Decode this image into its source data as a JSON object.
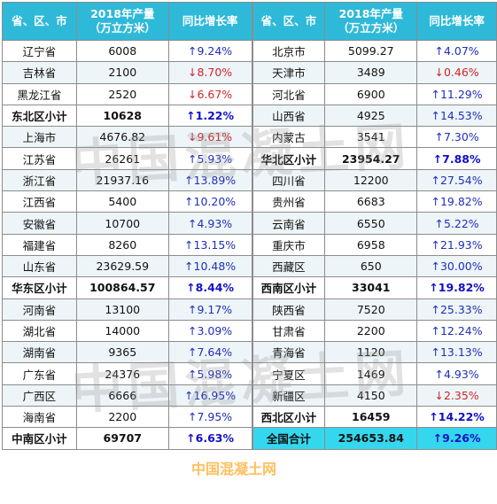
{
  "headers": {
    "region": "省、区、市",
    "production_line1": "2018年产量",
    "production_line2": "（万立方米）",
    "growth": "同比增长率"
  },
  "left_rows": [
    {
      "name": "辽宁省",
      "value": "6008",
      "growth": "↑9.24%",
      "dir": "up",
      "type": "odd"
    },
    {
      "name": "吉林省",
      "value": "2100",
      "growth": "↓8.70%",
      "dir": "down",
      "type": "even"
    },
    {
      "name": "黑龙江省",
      "value": "2520",
      "growth": "↓6.67%",
      "dir": "down",
      "type": "odd"
    },
    {
      "name": "东北区小计",
      "value": "10628",
      "growth": "↑1.22%",
      "dir": "up",
      "type": "sub"
    },
    {
      "name": "上海市",
      "value": "4676.82",
      "growth": "↓9.61%",
      "dir": "down",
      "type": "even"
    },
    {
      "name": "江苏省",
      "value": "26261",
      "growth": "↑5.93%",
      "dir": "up",
      "type": "odd"
    },
    {
      "name": "浙江省",
      "value": "21937.16",
      "growth": "↑13.89%",
      "dir": "up",
      "type": "even"
    },
    {
      "name": "江西省",
      "value": "5400",
      "growth": "↑10.20%",
      "dir": "up",
      "type": "odd"
    },
    {
      "name": "安徽省",
      "value": "10700",
      "growth": "↑4.93%",
      "dir": "up",
      "type": "even"
    },
    {
      "name": "福建省",
      "value": "8260",
      "growth": "↑13.15%",
      "dir": "up",
      "type": "odd"
    },
    {
      "name": "山东省",
      "value": "23629.59",
      "growth": "↑10.48%",
      "dir": "up",
      "type": "even"
    },
    {
      "name": "华东区小计",
      "value": "100864.57",
      "growth": "↑8.44%",
      "dir": "up",
      "type": "sub"
    },
    {
      "name": "河南省",
      "value": "13100",
      "growth": "↑9.17%",
      "dir": "up",
      "type": "even"
    },
    {
      "name": "湖北省",
      "value": "14000",
      "growth": "↑3.09%",
      "dir": "up",
      "type": "odd"
    },
    {
      "name": "湖南省",
      "value": "9365",
      "growth": "↑7.64%",
      "dir": "up",
      "type": "even"
    },
    {
      "name": "广东省",
      "value": "24376",
      "growth": "↑5.98%",
      "dir": "up",
      "type": "odd"
    },
    {
      "name": "广西区",
      "value": "6666",
      "growth": "↑16.95%",
      "dir": "up",
      "type": "even"
    },
    {
      "name": "海南省",
      "value": "2200",
      "growth": "↑7.95%",
      "dir": "up",
      "type": "odd"
    },
    {
      "name": "中南区小计",
      "value": "69707",
      "growth": "↑6.63%",
      "dir": "up",
      "type": "sub"
    }
  ],
  "right_rows": [
    {
      "name": "北京市",
      "value": "5099.27",
      "growth": "↑4.07%",
      "dir": "up",
      "type": "odd"
    },
    {
      "name": "天津市",
      "value": "3489",
      "growth": "↓0.46%",
      "dir": "down",
      "type": "even"
    },
    {
      "name": "河北省",
      "value": "6900",
      "growth": "↑11.29%",
      "dir": "up",
      "type": "odd"
    },
    {
      "name": "山西省",
      "value": "4925",
      "growth": "↑14.53%",
      "dir": "up",
      "type": "even"
    },
    {
      "name": "内蒙古",
      "value": "3541",
      "growth": "↑7.30%",
      "dir": "up",
      "type": "odd"
    },
    {
      "name": "华北区小计",
      "value": "23954.27",
      "growth": "↑7.88%",
      "dir": "up",
      "type": "sub"
    },
    {
      "name": "四川省",
      "value": "12200",
      "growth": "↑27.54%",
      "dir": "up",
      "type": "even"
    },
    {
      "name": "贵州省",
      "value": "6683",
      "growth": "↑19.82%",
      "dir": "up",
      "type": "odd"
    },
    {
      "name": "云南省",
      "value": "6550",
      "growth": "↑5.22%",
      "dir": "up",
      "type": "even"
    },
    {
      "name": "重庆市",
      "value": "6958",
      "growth": "↑21.93%",
      "dir": "up",
      "type": "odd"
    },
    {
      "name": "西藏区",
      "value": "650",
      "growth": "↑30.00%",
      "dir": "up",
      "type": "even"
    },
    {
      "name": "西南区小计",
      "value": "33041",
      "growth": "↑19.82%",
      "dir": "up",
      "type": "sub"
    },
    {
      "name": "陕西省",
      "value": "7520",
      "growth": "↑25.33%",
      "dir": "up",
      "type": "even"
    },
    {
      "name": "甘肃省",
      "value": "2200",
      "growth": "↑12.24%",
      "dir": "up",
      "type": "odd"
    },
    {
      "name": "青海省",
      "value": "1120",
      "growth": "↑13.13%",
      "dir": "up",
      "type": "even"
    },
    {
      "name": "宁夏区",
      "value": "1469",
      "growth": "↑4.93%",
      "dir": "up",
      "type": "odd"
    },
    {
      "name": "新疆区",
      "value": "4150",
      "growth": "↓2.35%",
      "dir": "down",
      "type": "even"
    },
    {
      "name": "西北区小计",
      "value": "16459",
      "growth": "↑14.22%",
      "dir": "up",
      "type": "sub"
    },
    {
      "name": "全国合计",
      "value": "254653.84",
      "growth": "↑9.26%",
      "dir": "up",
      "type": "total"
    }
  ],
  "watermark": {
    "text": "中国混凝土网",
    "small_text": "中国混凝土网"
  }
}
